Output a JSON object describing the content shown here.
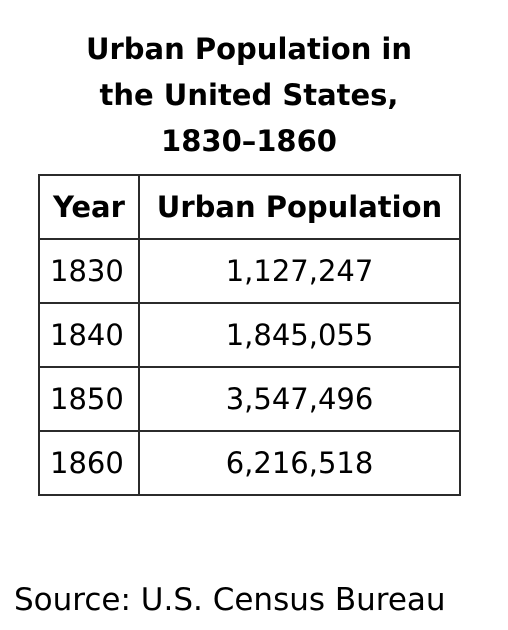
{
  "title_lines": [
    "Urban Population in",
    "the United States,",
    "1830–1860"
  ],
  "source": "Source: U.S. Census Bureau",
  "chart_data": {
    "type": "table",
    "title": "Urban Population in the United States, 1830–1860",
    "columns": [
      "Year",
      "Urban Population"
    ],
    "rows": [
      {
        "year": "1830",
        "population": "1,127,247"
      },
      {
        "year": "1840",
        "population": "1,845,055"
      },
      {
        "year": "1850",
        "population": "3,547,496"
      },
      {
        "year": "1860",
        "population": "6,216,518"
      }
    ]
  }
}
